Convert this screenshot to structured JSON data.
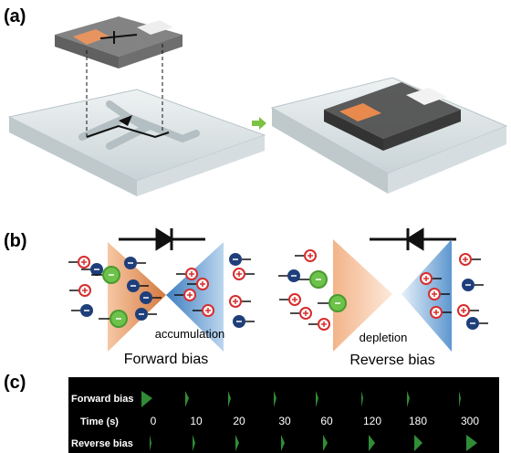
{
  "panels": {
    "a": {
      "label": "(a)"
    },
    "b": {
      "label": "(b)",
      "forward": {
        "annotation": "accumulation",
        "caption": "Forward bias"
      },
      "reverse": {
        "annotation": "depletion",
        "caption": "Reverse bias"
      }
    },
    "c": {
      "label": "(c)",
      "row_labels": [
        "Forward bias",
        "Reverse bias"
      ],
      "time_label": "Time (s)",
      "times": [
        0,
        10,
        20,
        30,
        60,
        120,
        180,
        300
      ]
    }
  }
}
